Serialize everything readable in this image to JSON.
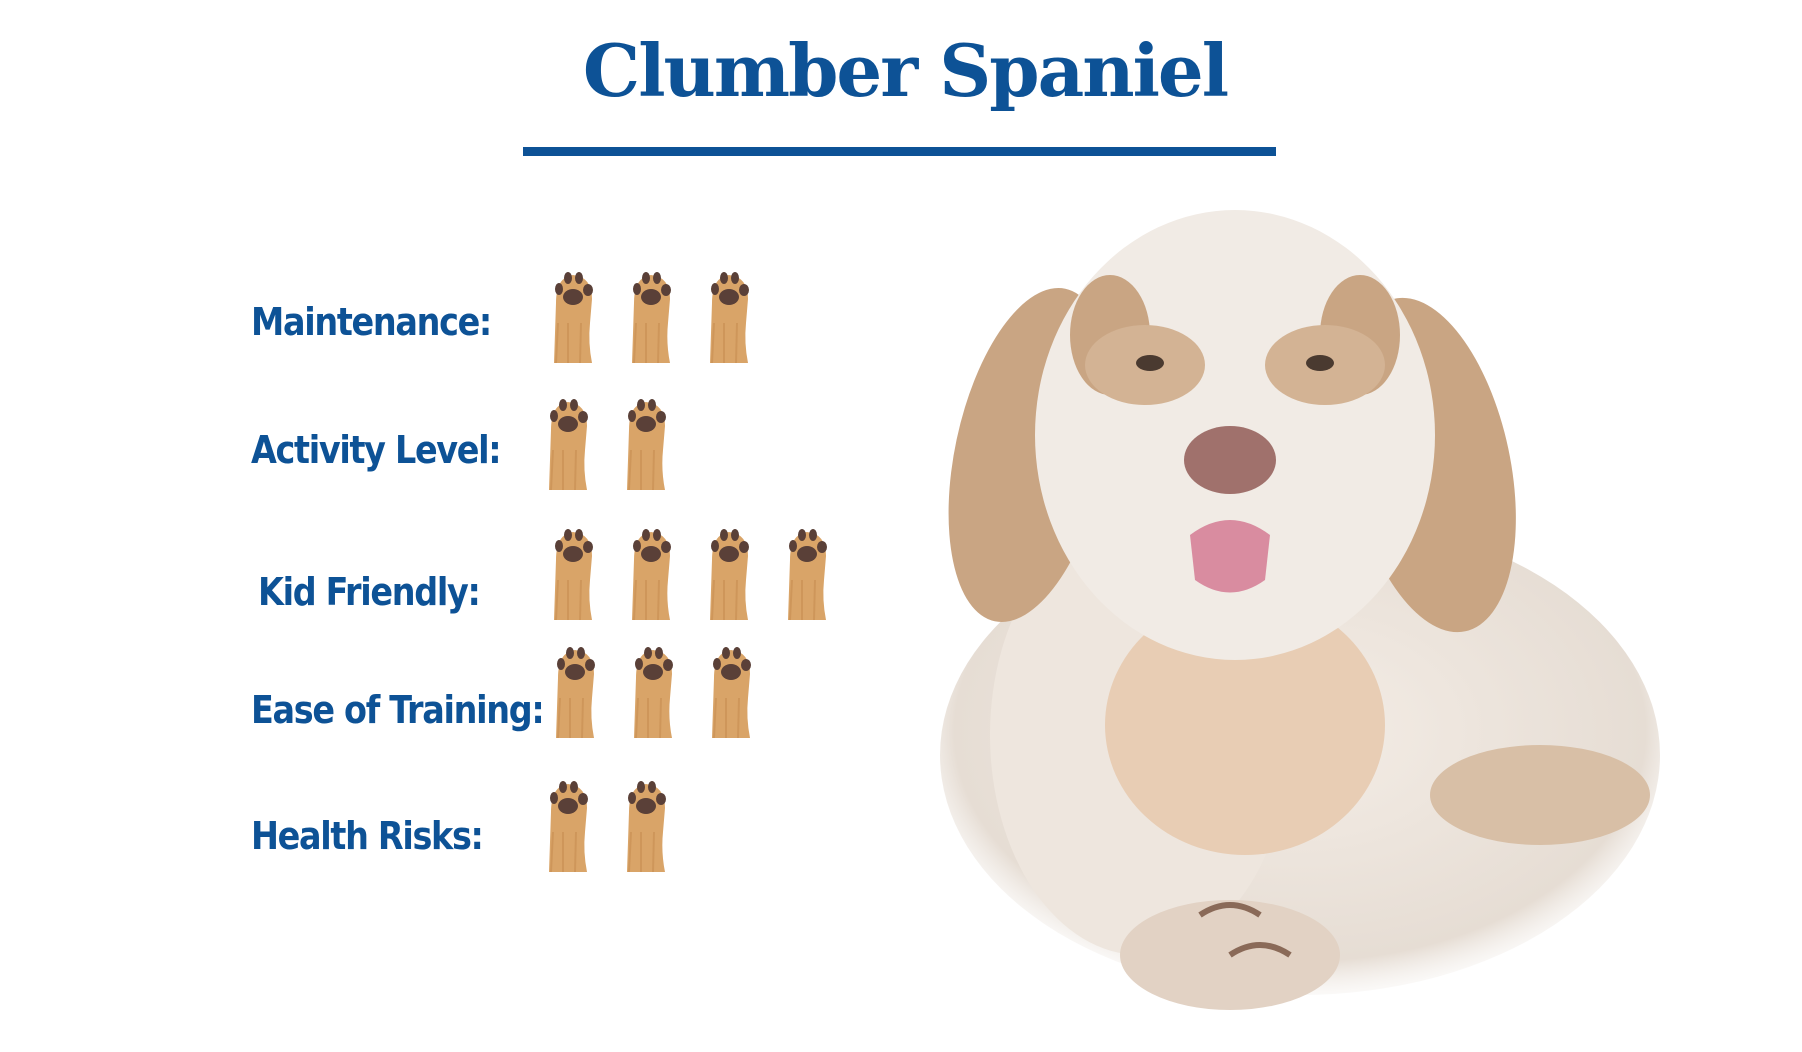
{
  "title": "Clumber Spaniel",
  "colors": {
    "title": "#0d5296",
    "label": "#0d5296",
    "paw_fur": "#d9a468",
    "paw_pad": "#5a4038"
  },
  "ratings": [
    {
      "label": "Maintenance:",
      "paws": 3
    },
    {
      "label": "Activity Level:",
      "paws": 2
    },
    {
      "label": "Kid Friendly:",
      "paws": 4
    },
    {
      "label": "Ease of Training:",
      "paws": 3
    },
    {
      "label": "Health Risks:",
      "paws": 2
    }
  ],
  "image": {
    "icon": "clumber-spaniel-photo"
  }
}
